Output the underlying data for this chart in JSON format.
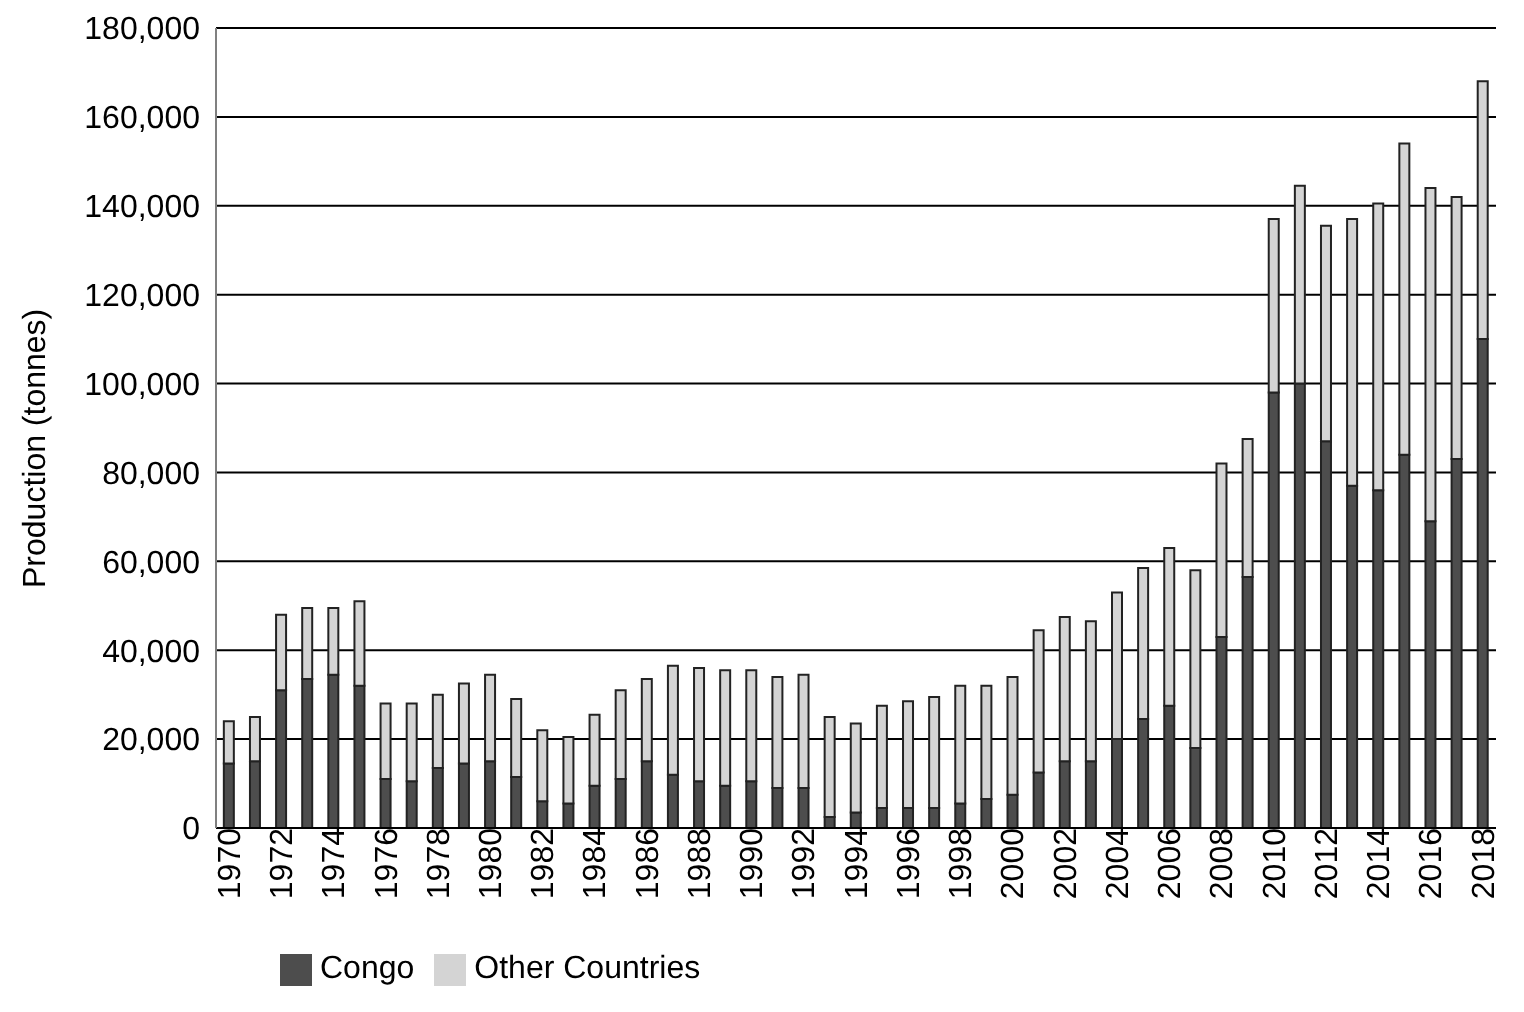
{
  "chart_data": {
    "type": "bar",
    "stacked": true,
    "ylabel": "Production (tonnes)",
    "categories": [
      "1970",
      null,
      "1972",
      null,
      "1974",
      null,
      "1976",
      null,
      "1978",
      null,
      "1980",
      null,
      "1982",
      null,
      "1984",
      null,
      "1986",
      null,
      "1988",
      null,
      "1990",
      null,
      "1992",
      null,
      "1994",
      null,
      "1996",
      null,
      "1998",
      null,
      "2000",
      null,
      "2002",
      null,
      "2004",
      null,
      "2006",
      null,
      "2008",
      null,
      "2010",
      null,
      "2012",
      null,
      "2014",
      null,
      "2016",
      null,
      "2018"
    ],
    "series": [
      {
        "name": "Congo",
        "color": "#4d4d4d",
        "values": [
          14500,
          15000,
          31000,
          33500,
          34500,
          32000,
          11000,
          10500,
          13500,
          14500,
          15000,
          11500,
          6000,
          5500,
          9500,
          11000,
          15000,
          12000,
          10500,
          9500,
          10500,
          9000,
          9000,
          2500,
          3500,
          4500,
          4500,
          4500,
          5500,
          6500,
          7500,
          12500,
          15000,
          15000,
          20000,
          24500,
          27500,
          18000,
          43000,
          56500,
          98000,
          100000,
          87000,
          77000,
          76000,
          84000,
          69000,
          83000,
          110000
        ]
      },
      {
        "name": "Other Countries",
        "color": "#d4d4d4",
        "values": [
          9500,
          10000,
          17000,
          16000,
          15000,
          19000,
          17000,
          17500,
          16500,
          18000,
          19500,
          17500,
          16000,
          15000,
          16000,
          20000,
          18500,
          24500,
          25500,
          26000,
          25000,
          25000,
          25500,
          22500,
          20000,
          23000,
          24000,
          25000,
          26500,
          25500,
          26500,
          32000,
          32500,
          31500,
          33000,
          34000,
          35500,
          40000,
          39000,
          31000,
          39000,
          44500,
          48500,
          60000,
          64500,
          70000,
          75000,
          59000,
          58000
        ]
      }
    ],
    "ylim": [
      0,
      180000
    ],
    "yticks": [
      {
        "value": 0,
        "label": "0"
      },
      {
        "value": 20000,
        "label": "20,000"
      },
      {
        "value": 40000,
        "label": "40,000"
      },
      {
        "value": 60000,
        "label": "60,000"
      },
      {
        "value": 80000,
        "label": "80,000"
      },
      {
        "value": 100000,
        "label": "100,000"
      },
      {
        "value": 120000,
        "label": "120,000"
      },
      {
        "value": 140000,
        "label": "140,000"
      },
      {
        "value": 160000,
        "label": "160,000"
      },
      {
        "value": 180000,
        "label": "180,000"
      }
    ],
    "grid": "y",
    "legend": "bottom left"
  }
}
